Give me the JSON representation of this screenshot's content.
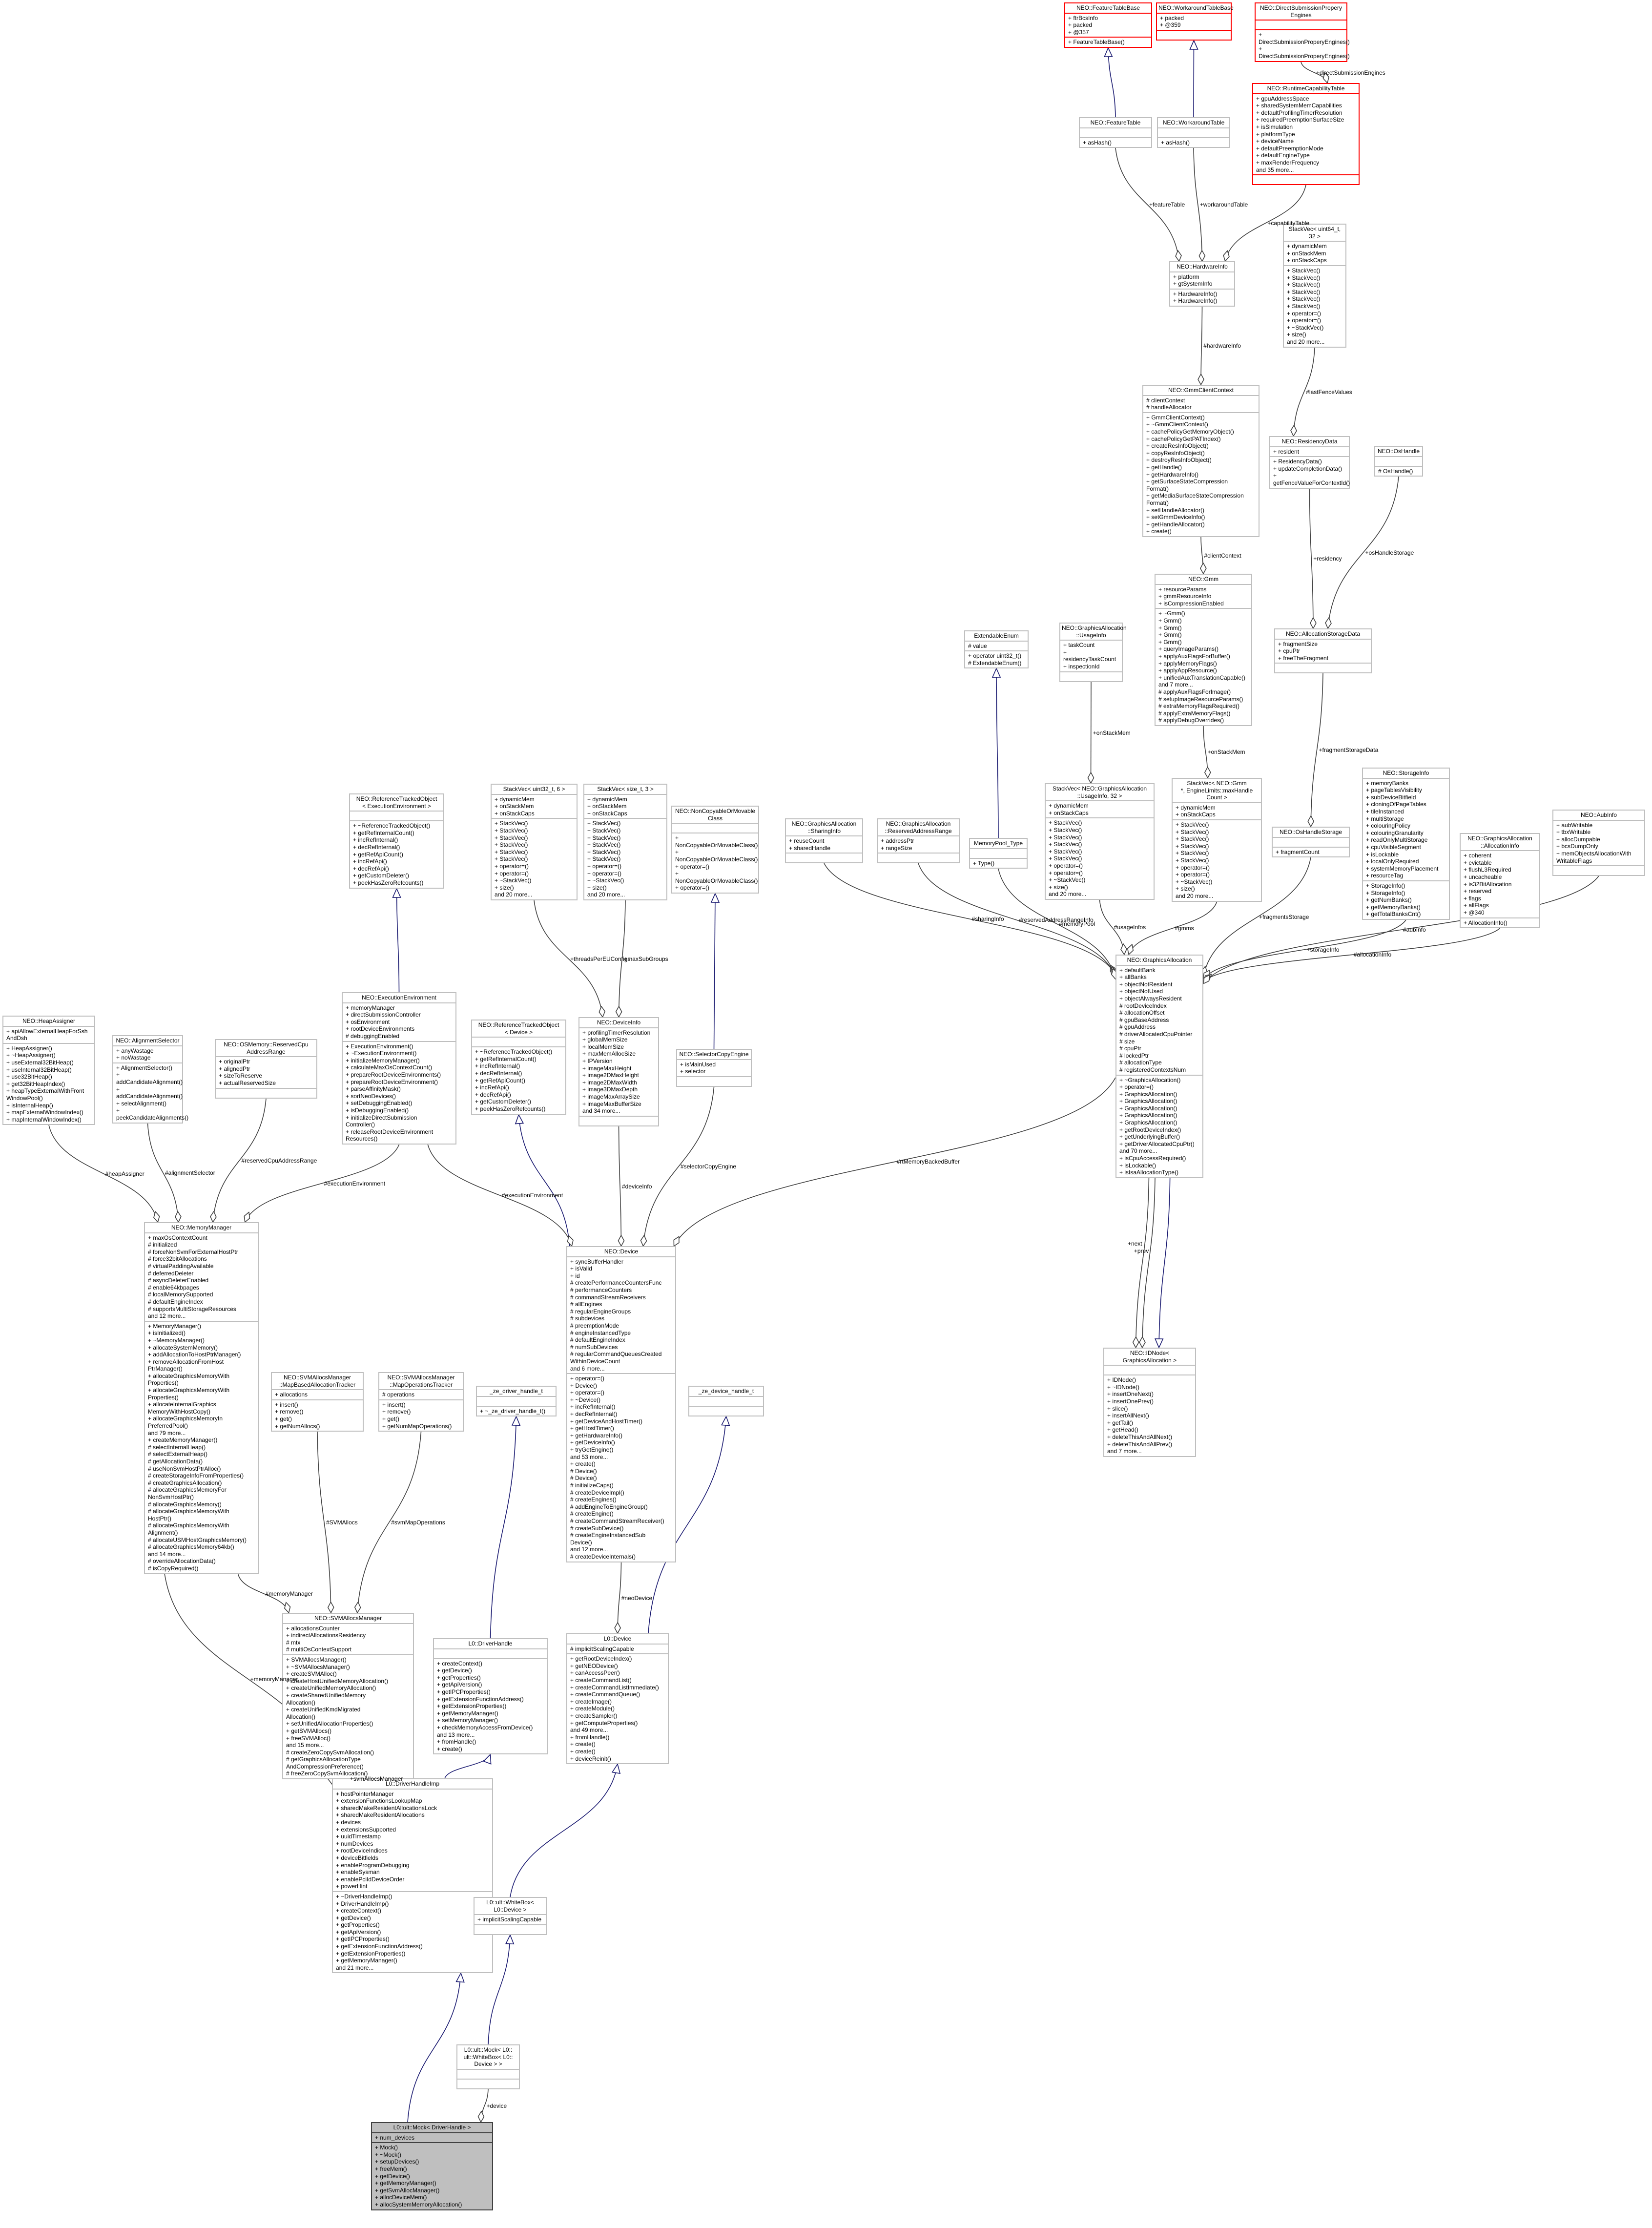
{
  "nodes": [
    {
      "id": "ftb",
      "title": "NEO::FeatureTableBase",
      "attrs": "+ ftrBcsInfo\n+ packed\n+ @357",
      "ops": "+ FeatureTableBase()",
      "red": true
    },
    {
      "id": "wtb",
      "title": "NEO::WorkaroundTableBase",
      "attrs": "+ packed\n+ @359",
      "ops": "",
      "red": true
    },
    {
      "id": "dspe",
      "title": "NEO::DirectSubmissionPropery\nEngines",
      "attrs": "",
      "ops": "+ DirectSubmissionProperyEngines()\n+ DirectSubmissionProperyEngines()",
      "red": true
    },
    {
      "id": "ft",
      "title": "NEO::FeatureTable",
      "attrs": "",
      "ops": "+ asHash()"
    },
    {
      "id": "wt",
      "title": "NEO::WorkaroundTable",
      "attrs": "",
      "ops": "+ asHash()"
    },
    {
      "id": "rcc",
      "title": "NEO::RuntimeCapabilityTable",
      "attrs": "+ gpuAddressSpace\n+ sharedSystemMemCapabilities\n+ defaultProfilingTimerResolution\n+ requiredPreemptionSurfaceSize\n+ isSimulation\n+ platformType\n+ deviceName\n+ defaultPreemptionMode\n+ defaultEngineType\n+ maxRenderFrequency\nand 35 more...",
      "ops": "",
      "red": true
    },
    {
      "id": "hw",
      "title": "NEO::HardwareInfo",
      "attrs": "+ platform\n+ gtSystemInfo",
      "ops": "+ HardwareInfo()\n+ HardwareInfo()"
    },
    {
      "id": "sv32",
      "title": "StackVec< uint64_t,\n32 >",
      "attrs": "+ dynamicMem\n+ onStackMem\n+ onStackCaps",
      "ops": "+ StackVec()\n+ StackVec()\n+ StackVec()\n+ StackVec()\n+ StackVec()\n+ StackVec()\n+ operator=()\n+ operator=()\n+ ~StackVec()\n+ size()\nand 20 more..."
    },
    {
      "id": "gcc",
      "title": "NEO::GmmClientContext",
      "attrs": "# clientContext\n# handleAllocator",
      "ops": "+ GmmClientContext()\n+ ~GmmClientContext()\n+ cachePolicyGetMemoryObject()\n+ cachePolicyGetPATIndex()\n+ createResInfoObject()\n+ copyResInfoObject()\n+ destroyResInfoObject()\n+ getHandle()\n+ getHardwareInfo()\n+ getSurfaceStateCompression\nFormat()\n+ getMediaSurfaceStateCompression\nFormat()\n+ setHandleAllocator()\n+ setGmmDeviceInfo()\n+ getHandleAllocator()\n+ create()"
    },
    {
      "id": "rd",
      "title": "NEO::ResidencyData",
      "attrs": "+ resident",
      "ops": "+ ResidencyData()\n+ updateCompletionData()\n+ getFenceValueForContextId()"
    },
    {
      "id": "osh",
      "title": "NEO::OsHandle",
      "attrs": "",
      "ops": "# OsHandle()"
    },
    {
      "id": "gmm",
      "title": "NEO::Gmm",
      "attrs": "+ resourceParams\n+ gmmResourceInfo\n+ isCompressionEnabled",
      "ops": "+ ~Gmm()\n+ Gmm()\n+ Gmm()\n+ Gmm()\n+ Gmm()\n+ queryImageParams()\n+ applyAuxFlagsForBuffer()\n+ applyMemoryFlags()\n+ applyAppResource()\n+ unifiedAuxTranslationCapable()\nand 7 more...\n# applyAuxFlagsForImage()\n# setupImageResourceParams()\n# extraMemoryFlagsRequired()\n# applyExtraMemoryFlags()\n# applyDebugOverrides()"
    },
    {
      "id": "ee",
      "title": "ExtendableEnum",
      "attrs": "# value",
      "ops": "+ operator uint32_t()\n# ExtendableEnum()"
    },
    {
      "id": "gaui",
      "title": "NEO::GraphicsAllocation\n::UsageInfo",
      "attrs": "+ taskCount\n+ residencyTaskCount\n+ inspectionId",
      "ops": ""
    },
    {
      "id": "asd",
      "title": "NEO::AllocationStorageData",
      "attrs": "+ fragmentSize\n+ cpuPtr\n+ freeTheFragment",
      "ops": ""
    },
    {
      "id": "rtoee",
      "title": "NEO::ReferenceTrackedObject\n< ExecutionEnvironment >",
      "attrs": "",
      "ops": "+ ~ReferenceTrackedObject()\n+ getRefInternalCount()\n+ incRefInternal()\n+ decRefInternal()\n+ getRefApiCount()\n+ incRefApi()\n+ decRefApi()\n+ getCustomDeleter()\n+ peekHasZeroRefcounts()"
    },
    {
      "id": "sv6",
      "title": "StackVec< uint32_t, 6 >",
      "attrs": "+ dynamicMem\n+ onStackMem\n+ onStackCaps",
      "ops": "+ StackVec()\n+ StackVec()\n+ StackVec()\n+ StackVec()\n+ StackVec()\n+ StackVec()\n+ operator=()\n+ operator=()\n+ ~StackVec()\n+ size()\nand 20 more..."
    },
    {
      "id": "sv3",
      "title": "StackVec< size_t, 3 >",
      "attrs": "+ dynamicMem\n+ onStackMem\n+ onStackCaps",
      "ops": "+ StackVec()\n+ StackVec()\n+ StackVec()\n+ StackVec()\n+ StackVec()\n+ StackVec()\n+ operator=()\n+ operator=()\n+ ~StackVec()\n+ size()\nand 20 more..."
    },
    {
      "id": "ncm",
      "title": "NEO::NonCopyableOrMovable\nClass",
      "attrs": "",
      "ops": "+ NonCopyableOrMovableClass()\n+ NonCopyableOrMovableClass()\n+ operator=()\n+ NonCopyableOrMovableClass()\n+ operator=()"
    },
    {
      "id": "gasi",
      "title": "NEO::GraphicsAllocation\n::SharingInfo",
      "attrs": "+ reuseCount\n+ sharedHandle",
      "ops": ""
    },
    {
      "id": "garr",
      "title": "NEO::GraphicsAllocation\n::ReservedAddressRange",
      "attrs": "+ addressPtr\n+ rangeSize",
      "ops": ""
    },
    {
      "id": "mpt",
      "title": "MemoryPool_Type",
      "attrs": "",
      "ops": "+ Type()"
    },
    {
      "id": "svga",
      "title": "StackVec< NEO::GraphicsAllocation\n::UsageInfo, 32 >",
      "attrs": "+ dynamicMem\n+ onStackCaps",
      "ops": "+ StackVec()\n+ StackVec()\n+ StackVec()\n+ StackVec()\n+ StackVec()\n+ StackVec()\n+ operator=()\n+ operator=()\n+ ~StackVec()\n+ size()\nand 20 more..."
    },
    {
      "id": "svgmm",
      "title": "StackVec< NEO::Gmm\n*, EngineLimits::maxHandle\nCount >",
      "attrs": "+ dynamicMem\n+ onStackCaps",
      "ops": "+ StackVec()\n+ StackVec()\n+ StackVec()\n+ StackVec()\n+ StackVec()\n+ StackVec()\n+ operator=()\n+ operator=()\n+ ~StackVec()\n+ size()\nand 20 more..."
    },
    {
      "id": "si",
      "title": "NEO::StorageInfo",
      "attrs": "+ memoryBanks\n+ pageTablesVisibility\n+ subDeviceBitfield\n+ cloningOfPageTables\n+ tileInstanced\n+ multiStorage\n+ colouringPolicy\n+ colouringGranularity\n+ readOnlyMultiStorage\n+ cpuVisibleSegment\n+ isLockable\n+ localOnlyRequired\n+ systemMemoryPlacement\n+ resourceTag",
      "ops": "+ StorageInfo()\n+ StorageInfo()\n+ getNumBanks()\n+ getMemoryBanks()\n+ getTotalBanksCnt()"
    },
    {
      "id": "gaai",
      "title": "NEO::GraphicsAllocation\n::AllocationInfo",
      "attrs": "+ coherent\n+ evictable\n+ flushL3Required\n+ uncacheable\n+ is32BitAllocation\n+ reserved\n+ flags\n+ allFlags\n+ @340",
      "ops": "+ AllocationInfo()"
    },
    {
      "id": "aux",
      "title": "NEO::AubInfo",
      "attrs": "+ aubWritable\n+ tbxWritable\n+ allocDumpable\n+ bcsDumpOnly\n+ memObjectsAllocationWith\nWritableFlags",
      "ops": ""
    },
    {
      "id": "ohs",
      "title": "NEO::OsHandleStorage",
      "attrs": "",
      "ops": "+ fragmentCount"
    },
    {
      "id": "ga",
      "title": "NEO::GraphicsAllocation",
      "attrs": "+ defaultBank\n+ allBanks\n+ objectNotResident\n+ objectNotUsed\n+ objectAlwaysResident\n# rootDeviceIndex\n# allocationOffset\n# gpuBaseAddress\n# gpuAddress\n# driverAllocatedCpuPointer\n# size\n# cpuPtr\n# lockedPtr\n# allocationType\n# registeredContextsNum",
      "ops": "+ ~GraphicsAllocation()\n+ operator=()\n+ GraphicsAllocation()\n+ GraphicsAllocation()\n+ GraphicsAllocation()\n+ GraphicsAllocation()\n+ GraphicsAllocation()\n+ getRootDeviceIndex()\n+ getUnderlyingBuffer()\n+ getDriverAllocatedCpuPtr()\nand 70 more...\n+ isCpuAccessRequired()\n+ isLockable()\n+ isIsaAllocationType()"
    },
    {
      "id": "ha",
      "title": "NEO::HeapAssigner",
      "attrs": "+ apiAllowExternalHeapForSsh\nAndDsh",
      "ops": "+ HeapAssigner()\n+ ~HeapAssigner()\n+ useExternal32BitHeap()\n+ useInternal32BitHeap()\n+ use32BitHeap()\n+ get32BitHeapIndex()\n+ heapTypeExternalWithFront\nWindowPool()\n+ isInternalHeap()\n+ mapExternalWindowIndex()\n+ mapInternalWindowIndex()"
    },
    {
      "id": "as",
      "title": "NEO::AlignmentSelector",
      "attrs": "+ anyWastage\n+ noWastage",
      "ops": "+ AlignmentSelector()\n+ addCandidateAlignment()\n+ addCandidateAlignment()\n+ selectAlignment()\n+ peekCandidateAlignments()"
    },
    {
      "id": "osm",
      "title": "NEO::OSMemory::ReservedCpu\nAddressRange",
      "attrs": "+ originalPtr\n+ alignedPtr\n+ sizeToReserve\n+ actualReservedSize",
      "ops": ""
    },
    {
      "id": "exe",
      "title": "NEO::ExecutionEnvironment",
      "attrs": "+ memoryManager\n+ directSubmissionController\n+ osEnvironment\n+ rootDeviceEnvironments\n# debuggingEnabled",
      "ops": "+ ExecutionEnvironment()\n+ ~ExecutionEnvironment()\n+ initializeMemoryManager()\n+ calculateMaxOsContextCount()\n+ prepareRootDeviceEnvironments()\n+ prepareRootDeviceEnvironment()\n+ parseAffinityMask()\n+ sortNeoDevices()\n+ setDebuggingEnabled()\n+ isDebuggingEnabled()\n+ initializeDirectSubmission\nController()\n+ releaseRootDeviceEnvironment\nResources()"
    },
    {
      "id": "rtod",
      "title": "NEO::ReferenceTrackedObject\n< Device >",
      "attrs": "",
      "ops": "+ ~ReferenceTrackedObject()\n+ getRefInternalCount()\n+ incRefInternal()\n+ decRefInternal()\n+ getRefApiCount()\n+ incRefApi()\n+ decRefApi()\n+ getCustomDeleter()\n+ peekHasZeroRefcounts()"
    },
    {
      "id": "di",
      "title": "NEO::DeviceInfo",
      "attrs": "+ profilingTimerResolution\n+ globalMemSize\n+ localMemSize\n+ maxMemAllocSize\n+ IPVersion\n+ imageMaxHeight\n+ image2DMaxHeight\n+ image2DMaxWidth\n+ image3DMaxDepth\n+ imageMaxArraySize\n+ imageMaxBufferSize\nand 34 more...",
      "ops": ""
    },
    {
      "id": "sce",
      "title": "NEO::SelectorCopyEngine",
      "attrs": "+ isMainUsed\n+ selector",
      "ops": ""
    },
    {
      "id": "mm",
      "title": "NEO::MemoryManager",
      "attrs": "+ maxOsContextCount\n# initialized\n# forceNonSvmForExternalHostPtr\n# force32bitAllocations\n# virtualPaddingAvailable\n# deferredDeleter\n# asyncDeleterEnabled\n# enable64kbpages\n# localMemorySupported\n# defaultEngineIndex\n# supportsMultiStorageResources\nand 12 more...",
      "ops": "+ MemoryManager()\n+ isInitialized()\n+ ~MemoryManager()\n+ allocateSystemMemory()\n+ addAllocationToHostPtrManager()\n+ removeAllocationFromHost\nPtrManager()\n+ allocateGraphicsMemoryWith\nProperties()\n+ allocateGraphicsMemoryWith\nProperties()\n+ allocateInternalGraphics\nMemoryWithHostCopy()\n+ allocateGraphicsMemoryIn\nPreferredPool()\nand 79 more...\n+ createMemoryManager()\n# selectInternalHeap()\n# selectExternalHeap()\n# getAllocationData()\n# useNonSvmHostPtrAlloc()\n# createStorageInfoFromProperties()\n# createGraphicsAllocation()\n# allocateGraphicsMemoryFor\nNonSvmHostPtr()\n# allocateGraphicsMemory()\n# allocateGraphicsMemoryWith\nHostPtr()\n# allocateGraphicsMemoryWith\nAlignment()\n# allocateUSMHostGraphicsMemory()\n# allocateGraphicsMemory64kb()\nand 14 more...\n# overrideAllocationData()\n# isCopyRequired()"
    },
    {
      "id": "dev",
      "title": "NEO::Device",
      "attrs": "+ syncBufferHandler\n+ isValid\n+ id\n# createPerformanceCountersFunc\n# performanceCounters\n# commandStreamReceivers\n# allEngines\n# regularEngineGroups\n# subdevices\n# preemptionMode\n# engineInstancedType\n# defaultEngineIndex\n# numSubDevices\n# regularCommandQueuesCreated\nWithinDeviceCount\nand 6 more...",
      "ops": "+ operator=()\n+ Device()\n+ operator=()\n+ ~Device()\n+ incRefInternal()\n+ decRefInternal()\n+ getDeviceAndHostTimer()\n+ getHostTimer()\n+ getHardwareInfo()\n+ getDeviceInfo()\n+ tryGetEngine()\nand 53 more...\n+ create()\n# Device()\n# Device()\n# initializeCaps()\n# createDeviceImpl()\n# createEngines()\n# addEngineToEngineGroup()\n# createEngine()\n# createCommandStreamReceiver()\n# createSubDevice()\n# createEngineInstancedSub\nDevice()\nand 12 more...\n# createDeviceInternals()"
    },
    {
      "id": "idn",
      "title": "NEO::IDNode< GraphicsAllocation >",
      "attrs": "",
      "ops": "+ IDNode()\n+ ~IDNode()\n+ insertOneNext()\n+ insertOnePrev()\n+ slice()\n+ insertAllNext()\n+ getTail()\n+ getHead()\n+ deleteThisAndAllNext()\n+ deleteThisAndAllPrev()\nand 7 more..."
    },
    {
      "id": "svmt",
      "title": "NEO::SVMAllocsManager\n::MapBasedAllocationTracker",
      "attrs": "+ allocations",
      "ops": "+ insert()\n+ remove()\n+ get()\n+ getNumAllocs()"
    },
    {
      "id": "svmo",
      "title": "NEO::SVMAllocsManager\n::MapOperationsTracker",
      "attrs": "# operations",
      "ops": "+ insert()\n+ remove()\n+ get()\n+ getNumMapOperations()"
    },
    {
      "id": "zdh",
      "title": "_ze_driver_handle_t",
      "attrs": "",
      "ops": "+ ~_ze_driver_handle_t()"
    },
    {
      "id": "zdv",
      "title": "_ze_device_handle_t",
      "attrs": "",
      "ops": ""
    },
    {
      "id": "svm",
      "title": "NEO::SVMAllocsManager",
      "attrs": "+ allocationsCounter\n+ indirectAllocationsResidency\n# mtx\n# multiOsContextSupport",
      "ops": "+ SVMAllocsManager()\n+ ~SVMAllocsManager()\n+ createSVMAlloc()\n+ createHostUnifiedMemoryAllocation()\n+ createUnifiedMemoryAllocation()\n+ createSharedUnifiedMemory\nAllocation()\n+ createUnifiedKmdMigrated\nAllocation()\n+ setUnifiedAllocationProperties()\n+ getSVMAllocs()\n+ freeSVMAlloc()\nand 15 more...\n# createZeroCopySvmAllocation()\n# getGraphicsAllocationType\nAndCompressionPreference()\n# freeZeroCopySvmAllocation()"
    },
    {
      "id": "l0dh",
      "title": "L0::DriverHandle",
      "attrs": "",
      "ops": "+ createContext()\n+ getDevice()\n+ getProperties()\n+ getApiVersion()\n+ getIPCProperties()\n+ getExtensionFunctionAddress()\n+ getExtensionProperties()\n+ getMemoryManager()\n+ setMemoryManager()\n+ checkMemoryAccessFromDevice()\nand 13 more...\n+ fromHandle()\n+ create()"
    },
    {
      "id": "l0d",
      "title": "L0::Device",
      "attrs": "# implicitScalingCapable",
      "ops": "+ getRootDeviceIndex()\n+ getNEODevice()\n+ canAccessPeer()\n+ createCommandList()\n+ createCommandListImmediate()\n+ createCommandQueue()\n+ createImage()\n+ createModule()\n+ createSampler()\n+ getComputeProperties()\nand 49 more...\n+ fromHandle()\n+ create()\n+ create()\n+ deviceReinit()"
    },
    {
      "id": "dhi",
      "title": "L0::DriverHandleImp",
      "attrs": "+ hostPointerManager\n+ extensionFunctionsLookupMap\n+ sharedMakeResidentAllocationsLock\n+ sharedMakeResidentAllocations\n+ devices\n+ extensionsSupported\n+ uuidTimestamp\n+ numDevices\n+ rootDeviceIndices\n+ deviceBitfields\n+ enableProgramDebugging\n+ enableSysman\n+ enablePciIdDeviceOrder\n+ powerHint",
      "ops": "+ ~DriverHandleImp()\n+ DriverHandleImp()\n+ createContext()\n+ getDevice()\n+ getProperties()\n+ getApiVersion()\n+ getIPCProperties()\n+ getExtensionFunctionAddress()\n+ getExtensionProperties()\n+ getMemoryManager()\nand 21 more..."
    },
    {
      "id": "wb",
      "title": "L0::ult::WhiteBox<\nL0::Device >",
      "attrs": "+ implicitScalingCapable",
      "ops": ""
    },
    {
      "id": "mwb",
      "title": "L0::ult::Mock< L0::\nult::WhiteBox< L0::\nDevice > >",
      "attrs": "",
      "ops": ""
    },
    {
      "id": "mdh",
      "title": "L0::ult::Mock< DriverHandle >",
      "attrs": "+ num_devices",
      "ops": "+ Mock()\n+ ~Mock()\n+ setupDevices()\n+ freeMem()\n+ getDevice()\n+ getMemoryManager()\n+ getSvmAllocManager()\n+ allocDeviceMem()\n+ allocSystemMemoryAllocation()",
      "hl": true
    }
  ],
  "edge_labels": {
    "capabilityTable": "+capabilityTable",
    "featureTable": "+featureTable",
    "workaroundTable": "+workaroundTable",
    "directSubmissionEngines": "+directSubmissionEngines",
    "hardwareInfo": "#hardwareInfo",
    "clientContext": "#clientContext",
    "lastFenceValues": "#lastFenceValues",
    "residency": "+residency",
    "osHandleStorage": "+osHandleStorage",
    "onStackMem": "+onStackMem",
    "onStackMem2": "+onStackMem",
    "fragmentStorageData": "+fragmentStorageData",
    "threadsPerEUConfigs": "+threadsPerEUConfigs",
    "maxSubGroups": "+maxSubGroups",
    "sharingInfo": "#sharingInfo",
    "reservedAddressRangeInfo": "#reservedAddressRangeInfo",
    "memoryPool": "#memoryPool",
    "usageInfos": "#usageInfos",
    "gmms": "#gmms",
    "fragmentsStorage": "+fragmentsStorage",
    "storageInfo": "+storageInfo",
    "allocationInfo": "#allocationInfo",
    "aubInfo": "#aubInfo",
    "heapAssigner": "#heapAssigner",
    "alignmentSelector": "#alignmentSelector",
    "reservedCpuAddressRange": "#reservedCpuAddressRange",
    "executionEnvironment": "#executionEnvironment",
    "executionEnvironment2": "#executionEnvironment",
    "deviceInfo": "#deviceInfo",
    "selectorCopyEngine": "#selectorCopyEngine",
    "rtMemoryBackedBuffer": "#rtMemoryBackedBuffer",
    "next": "+next",
    "prev": "+prev",
    "memoryManager": "#memoryManager",
    "svmAllocs": "#SVMAllocs",
    "svmMapOperations": "#svmMapOperations",
    "neoDevice": "#neoDevice",
    "svmAllocsManager": "+svmAllocsManager",
    "memoryManager2": "+memoryManager",
    "device": "+device"
  }
}
